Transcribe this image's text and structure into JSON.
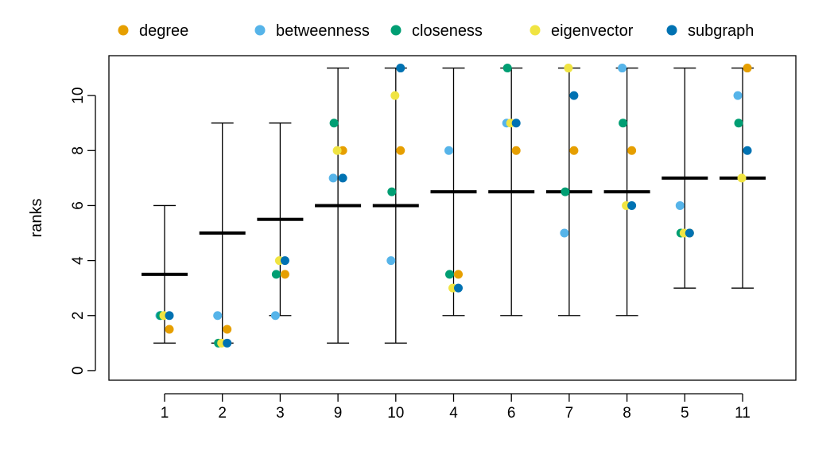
{
  "chart_data": {
    "type": "scatter",
    "title": "",
    "xlabel": "",
    "ylabel": "ranks",
    "ylim": [
      -0.35,
      11.45
    ],
    "y_ticks": [
      0,
      2,
      4,
      6,
      8,
      10
    ],
    "categories": [
      "1",
      "2",
      "3",
      "9",
      "10",
      "4",
      "6",
      "7",
      "8",
      "5",
      "11"
    ],
    "grid": false,
    "legend_position": "top",
    "range": {
      "min": [
        1,
        1,
        2,
        1,
        1,
        2,
        2,
        2,
        2,
        3,
        3
      ],
      "max": [
        6,
        9,
        9,
        11,
        11,
        11,
        11,
        11,
        11,
        11,
        11
      ],
      "median": [
        3.5,
        5,
        5.5,
        6,
        6,
        6.5,
        6.5,
        6.5,
        6.5,
        7,
        7
      ]
    },
    "series": [
      {
        "name": "degree",
        "color": "#E69F00",
        "values": [
          1.5,
          1.5,
          3.5,
          8,
          8,
          3.5,
          8,
          8,
          8,
          5,
          11
        ]
      },
      {
        "name": "betweenness",
        "color": "#56B4E9",
        "values": [
          2,
          2,
          2,
          7,
          4,
          8,
          9,
          5,
          11,
          6,
          10
        ]
      },
      {
        "name": "closeness",
        "color": "#009E73",
        "values": [
          2,
          1,
          3.5,
          9,
          6.5,
          3.5,
          11,
          6.5,
          9,
          5,
          9
        ]
      },
      {
        "name": "eigenvector",
        "color": "#F0E442",
        "values": [
          2,
          1,
          4,
          8,
          10,
          3,
          9,
          11,
          6,
          5,
          7
        ]
      },
      {
        "name": "subgraph",
        "color": "#0072B2",
        "values": [
          2,
          1,
          4,
          7,
          11,
          3,
          9,
          10,
          6,
          5,
          8
        ]
      }
    ]
  }
}
